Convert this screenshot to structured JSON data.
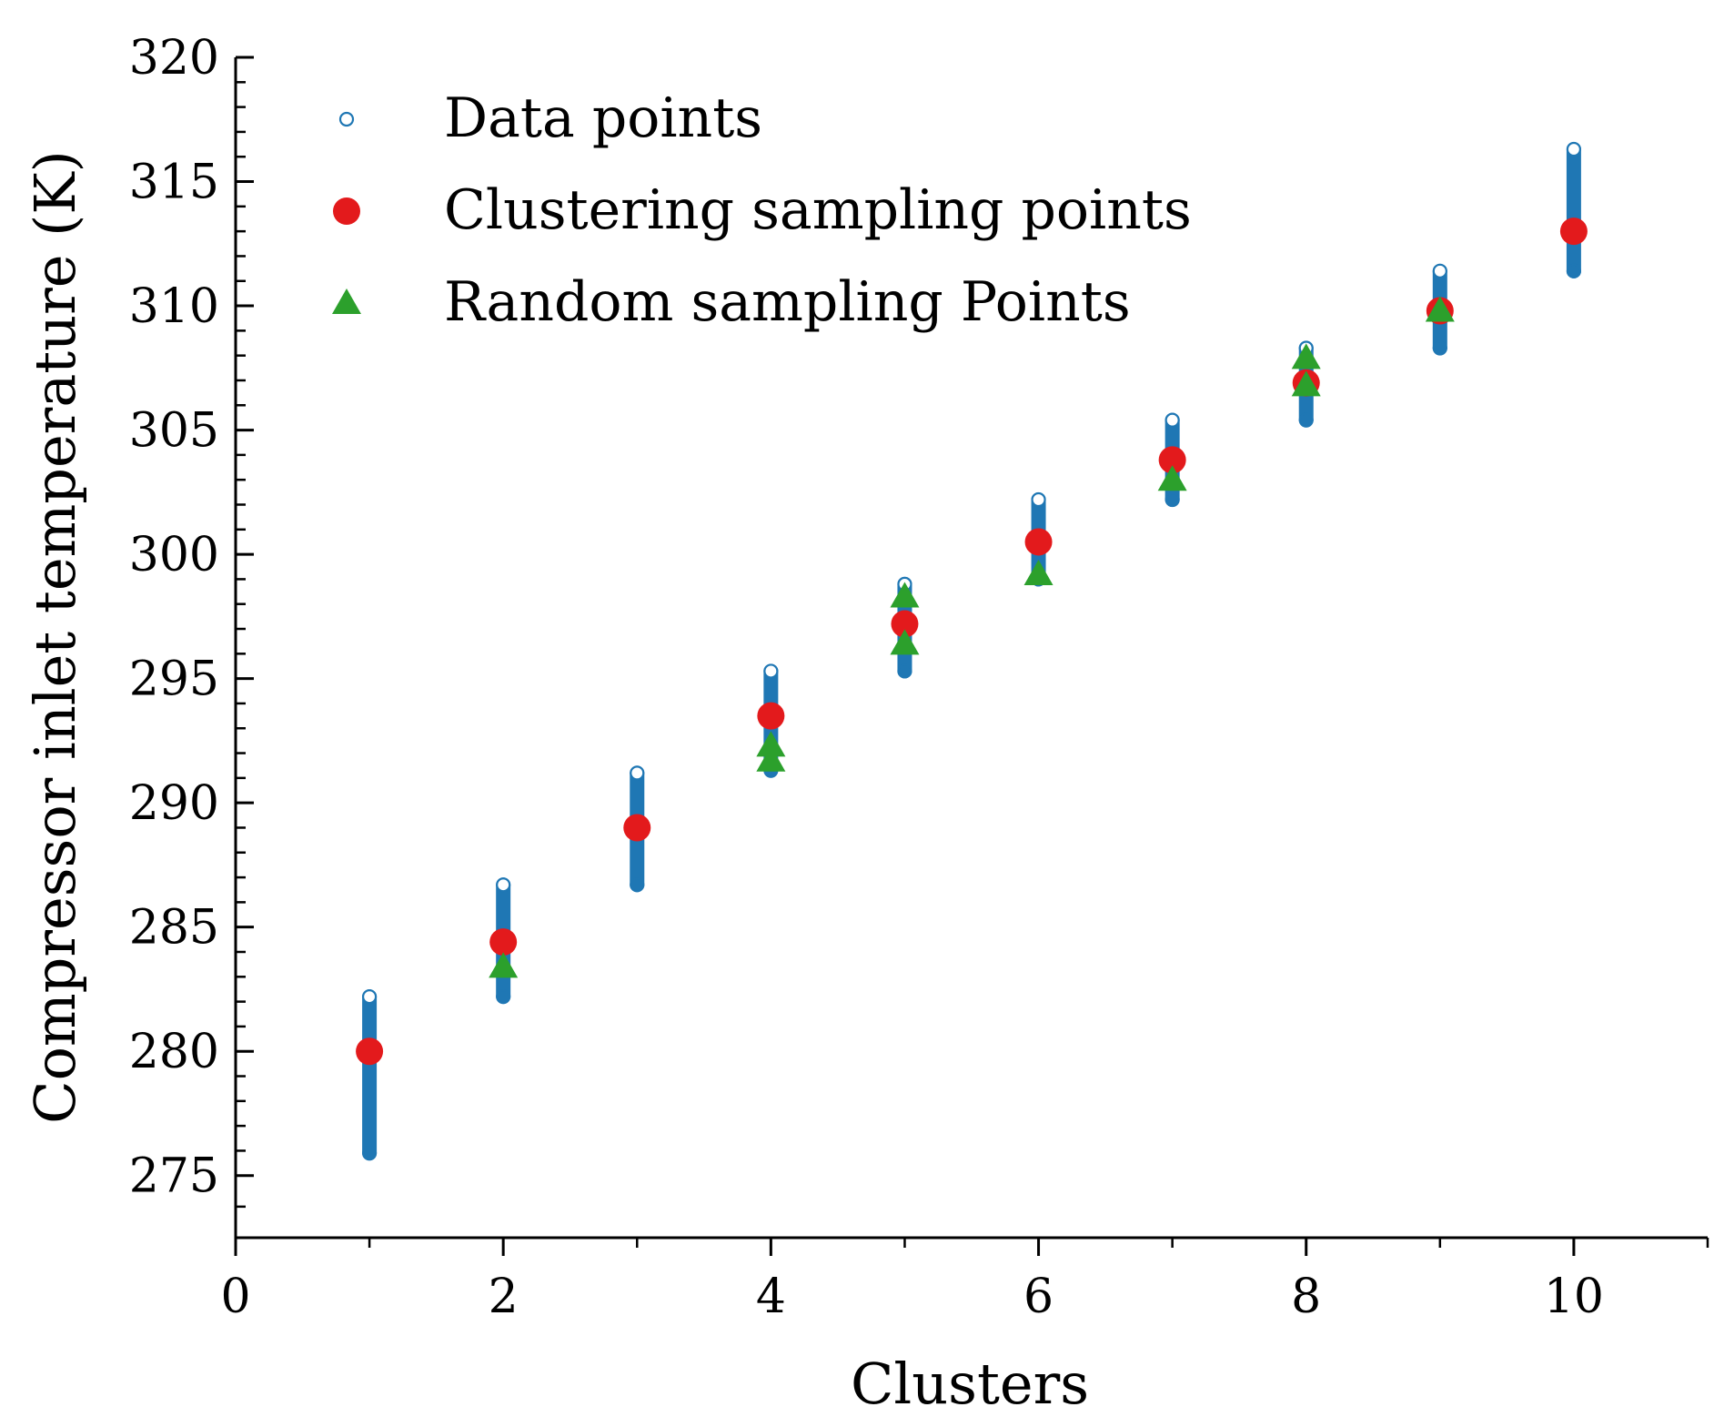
{
  "chart_data": {
    "type": "scatter",
    "xlabel": "Clusters",
    "ylabel": "Compressor inlet temperature (K)",
    "xlim": [
      0,
      11
    ],
    "ylim": [
      272.5,
      320
    ],
    "x_ticks": [
      0,
      2,
      4,
      6,
      8,
      10
    ],
    "x_tick_labels": [
      "0",
      "2",
      "4",
      "6",
      "8",
      "10"
    ],
    "y_ticks": [
      275,
      280,
      285,
      290,
      295,
      300,
      305,
      310,
      315,
      320
    ],
    "y_tick_labels": [
      "275",
      "280",
      "285",
      "290",
      "295",
      "300",
      "305",
      "310",
      "315",
      "320"
    ],
    "legend_position": "top-left",
    "series": [
      {
        "name": "Data points",
        "marker": "open-circle",
        "color": "#1f77b4",
        "ranges": [
          {
            "x": 1,
            "min": 275.9,
            "max": 282.2
          },
          {
            "x": 2,
            "min": 282.2,
            "max": 286.7
          },
          {
            "x": 3,
            "min": 286.7,
            "max": 291.2
          },
          {
            "x": 4,
            "min": 291.3,
            "max": 295.3
          },
          {
            "x": 5,
            "min": 295.3,
            "max": 298.8
          },
          {
            "x": 6,
            "min": 299.0,
            "max": 302.2
          },
          {
            "x": 7,
            "min": 302.2,
            "max": 305.4
          },
          {
            "x": 8,
            "min": 305.4,
            "max": 308.3
          },
          {
            "x": 9,
            "min": 308.3,
            "max": 311.4
          },
          {
            "x": 10,
            "min": 311.4,
            "max": 316.3
          }
        ]
      },
      {
        "name": "Clustering sampling points",
        "marker": "filled-circle",
        "color": "#e31a1c",
        "x": [
          1,
          2,
          3,
          4,
          5,
          6,
          7,
          8,
          9,
          10
        ],
        "y": [
          280.0,
          284.4,
          289.0,
          293.5,
          297.2,
          300.5,
          303.8,
          306.9,
          309.8,
          313.0
        ]
      },
      {
        "name": "Random sampling Points",
        "marker": "triangle",
        "color": "#2ca02c",
        "x": [
          2,
          4,
          4,
          5,
          5,
          6,
          7,
          8,
          8,
          9
        ],
        "y": [
          283.4,
          291.7,
          292.3,
          296.4,
          298.3,
          299.2,
          303.0,
          306.8,
          307.9,
          309.8
        ]
      }
    ]
  }
}
